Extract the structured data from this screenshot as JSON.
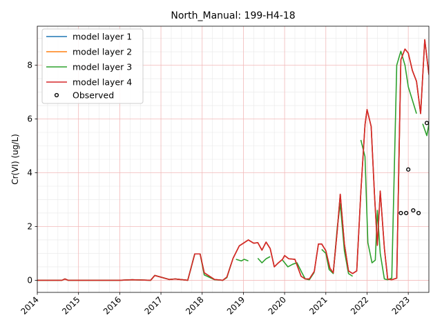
{
  "chart_data": {
    "type": "line",
    "title": "North_Manual: 199-H4-18",
    "xlabel": "",
    "ylabel": "Cr(VI) (ug/L)",
    "xlim": [
      2014.0,
      2023.5
    ],
    "ylim": [
      -0.45,
      9.45
    ],
    "x_ticks": [
      2014,
      2015,
      2016,
      2017,
      2018,
      2019,
      2020,
      2021,
      2022,
      2023
    ],
    "y_ticks": [
      0,
      2,
      4,
      6,
      8
    ],
    "grid": true,
    "legend_position": "top-left",
    "series": [
      {
        "name": "model layer 1",
        "color": "#1f77b4",
        "x": [
          2014.0,
          2014.6,
          2014.67,
          2014.75,
          2016.0,
          2016.3,
          2016.75,
          2016.85,
          2017.2,
          2017.35,
          2017.65,
          2017.82,
          2017.95,
          2018.05,
          2018.3,
          2018.5,
          2018.6,
          2018.75,
          2018.9,
          2019.0,
          2019.12,
          2019.25,
          2019.35,
          2019.45,
          2019.55,
          2019.65,
          2019.75,
          2019.85,
          2019.95,
          2020.0,
          2020.1,
          2020.25,
          2020.4,
          2020.5,
          2020.6,
          2020.72,
          2020.82,
          2020.9,
          2021.0,
          2021.1,
          2021.18,
          2021.28,
          2021.35,
          2021.45,
          2021.55,
          2021.65,
          2021.75,
          2021.85,
          2021.95,
          2022.0,
          2022.1,
          2022.18,
          2022.25,
          2022.32,
          2022.42,
          2022.5,
          2022.6,
          2022.72,
          2022.82,
          2022.92,
          2023.0,
          2023.1,
          2023.2,
          2023.3,
          2023.4,
          2023.5
        ],
        "y": [
          0.0,
          0.0,
          0.05,
          0.0,
          0.0,
          0.02,
          0.0,
          0.18,
          0.03,
          0.05,
          0.0,
          0.98,
          0.98,
          0.28,
          0.03,
          0.0,
          0.12,
          0.82,
          1.28,
          1.38,
          1.5,
          1.38,
          1.4,
          1.12,
          1.42,
          1.18,
          0.5,
          0.65,
          0.78,
          0.92,
          0.8,
          0.78,
          0.15,
          0.05,
          0.05,
          0.33,
          1.35,
          1.35,
          1.1,
          0.45,
          0.28,
          1.9,
          3.2,
          1.35,
          0.35,
          0.25,
          0.35,
          3.3,
          5.78,
          6.35,
          5.72,
          3.2,
          1.3,
          3.32,
          1.2,
          0.05,
          0.02,
          0.08,
          8.2,
          8.6,
          8.45,
          7.8,
          7.4,
          6.2,
          8.95,
          7.65
        ]
      },
      {
        "name": "model layer 2",
        "color": "#ff7f0e",
        "x": [
          2014.0,
          2014.6,
          2014.67,
          2014.75,
          2016.0,
          2016.3,
          2016.75,
          2016.85,
          2017.2,
          2017.35,
          2017.65,
          2017.82,
          2017.95,
          2018.05,
          2018.3,
          2018.5,
          2018.6,
          2018.75,
          2018.9,
          2019.0,
          2019.12,
          2019.25,
          2019.35,
          2019.45,
          2019.55,
          2019.65,
          2019.75,
          2019.85,
          2019.95,
          2020.0,
          2020.1,
          2020.25,
          2020.4,
          2020.5,
          2020.6,
          2020.72,
          2020.82,
          2020.9,
          2021.0,
          2021.1,
          2021.18,
          2021.28,
          2021.35,
          2021.45,
          2021.55,
          2021.65,
          2021.75,
          2021.85,
          2021.95,
          2022.0,
          2022.1,
          2022.18,
          2022.25,
          2022.32,
          2022.42,
          2022.5,
          2022.6,
          2022.72,
          2022.82,
          2022.92,
          2023.0,
          2023.1,
          2023.2,
          2023.3,
          2023.4,
          2023.5
        ],
        "y": [
          0.0,
          0.0,
          0.05,
          0.0,
          0.0,
          0.02,
          0.0,
          0.18,
          0.03,
          0.05,
          0.0,
          0.98,
          0.98,
          0.28,
          0.03,
          0.0,
          0.12,
          0.82,
          1.28,
          1.38,
          1.5,
          1.38,
          1.4,
          1.12,
          1.42,
          1.18,
          0.5,
          0.65,
          0.78,
          0.92,
          0.8,
          0.78,
          0.15,
          0.05,
          0.05,
          0.33,
          1.35,
          1.35,
          1.1,
          0.45,
          0.28,
          1.9,
          3.2,
          1.35,
          0.35,
          0.25,
          0.35,
          3.3,
          5.78,
          6.35,
          5.72,
          3.2,
          1.3,
          3.32,
          1.2,
          0.05,
          0.02,
          0.08,
          8.2,
          8.6,
          8.45,
          7.8,
          7.4,
          6.2,
          8.95,
          7.65
        ]
      },
      {
        "name": "model layer 3",
        "color": "#2ca02c",
        "segments": [
          {
            "x": [
              2014.0,
              2014.6,
              2014.67,
              2014.75,
              2016.0,
              2016.3,
              2016.75,
              2016.85,
              2017.2,
              2017.35,
              2017.65,
              2017.82,
              2017.95,
              2018.05,
              2018.3,
              2018.5,
              2018.6,
              2018.7
            ],
            "y": [
              0.0,
              0.0,
              0.05,
              0.0,
              0.0,
              0.02,
              0.0,
              0.18,
              0.03,
              0.05,
              0.0,
              0.98,
              0.98,
              0.2,
              0.02,
              0.0,
              0.1,
              0.6
            ]
          },
          {
            "x": [
              2018.82,
              2018.95,
              2019.02,
              2019.12
            ],
            "y": [
              0.78,
              0.72,
              0.78,
              0.72
            ]
          },
          {
            "x": [
              2019.35,
              2019.45,
              2019.55,
              2019.65
            ],
            "y": [
              0.82,
              0.65,
              0.8,
              0.88
            ]
          },
          {
            "x": [
              2019.95,
              2020.08,
              2020.2,
              2020.3,
              2020.42,
              2020.5,
              2020.6,
              2020.72
            ],
            "y": [
              0.75,
              0.5,
              0.6,
              0.65,
              0.28,
              0.05,
              0.02,
              0.3
            ]
          },
          {
            "x": [
              2020.9,
              2021.0,
              2021.08,
              2021.18,
              2021.28,
              2021.35,
              2021.45,
              2021.55,
              2021.65
            ],
            "y": [
              1.15,
              1.0,
              0.4,
              0.25,
              2.0,
              2.85,
              1.1,
              0.25,
              0.15
            ]
          },
          {
            "x": [
              2021.85,
              2021.95,
              2022.02,
              2022.12,
              2022.2,
              2022.25,
              2022.32,
              2022.42,
              2022.5,
              2022.6,
              2022.72,
              2022.82,
              2022.92,
              2023.0,
              2023.1,
              2023.2
            ],
            "y": [
              5.22,
              4.6,
              1.4,
              0.65,
              0.75,
              2.6,
              1.0,
              0.05,
              0.02,
              0.08,
              8.0,
              8.52,
              8.0,
              7.2,
              6.7,
              6.2
            ]
          },
          {
            "x": [
              2023.35,
              2023.45,
              2023.55
            ],
            "y": [
              5.82,
              5.38,
              6.22
            ]
          }
        ]
      },
      {
        "name": "model layer 4",
        "color": "#d62728",
        "x": [
          2014.0,
          2014.6,
          2014.67,
          2014.75,
          2016.0,
          2016.3,
          2016.75,
          2016.85,
          2017.2,
          2017.35,
          2017.65,
          2017.82,
          2017.95,
          2018.05,
          2018.3,
          2018.5,
          2018.6,
          2018.75,
          2018.9,
          2019.0,
          2019.12,
          2019.25,
          2019.35,
          2019.45,
          2019.55,
          2019.65,
          2019.75,
          2019.85,
          2019.95,
          2020.0,
          2020.1,
          2020.25,
          2020.4,
          2020.5,
          2020.6,
          2020.72,
          2020.82,
          2020.9,
          2021.0,
          2021.1,
          2021.18,
          2021.28,
          2021.35,
          2021.45,
          2021.55,
          2021.65,
          2021.75,
          2021.85,
          2021.95,
          2022.0,
          2022.1,
          2022.18,
          2022.25,
          2022.32,
          2022.42,
          2022.5,
          2022.6,
          2022.72,
          2022.82,
          2022.92,
          2023.0,
          2023.1,
          2023.2,
          2023.3,
          2023.4,
          2023.5
        ],
        "y": [
          0.0,
          0.0,
          0.05,
          0.0,
          0.0,
          0.02,
          0.0,
          0.18,
          0.03,
          0.05,
          0.0,
          0.98,
          0.98,
          0.28,
          0.03,
          0.0,
          0.12,
          0.82,
          1.28,
          1.38,
          1.5,
          1.38,
          1.4,
          1.12,
          1.42,
          1.18,
          0.5,
          0.65,
          0.78,
          0.92,
          0.8,
          0.78,
          0.15,
          0.05,
          0.05,
          0.33,
          1.35,
          1.35,
          1.1,
          0.45,
          0.28,
          1.9,
          3.2,
          1.35,
          0.35,
          0.25,
          0.35,
          3.3,
          5.78,
          6.35,
          5.72,
          3.2,
          1.3,
          3.32,
          1.2,
          0.05,
          0.02,
          0.08,
          8.2,
          8.6,
          8.45,
          7.8,
          7.4,
          6.2,
          8.95,
          7.65
        ]
      }
    ],
    "observed": {
      "name": "Observed",
      "x": [
        2022.82,
        2022.95,
        2023.0,
        2023.12,
        2023.25,
        2023.45
      ],
      "y": [
        2.5,
        2.5,
        4.12,
        2.6,
        2.5,
        5.85
      ]
    }
  }
}
